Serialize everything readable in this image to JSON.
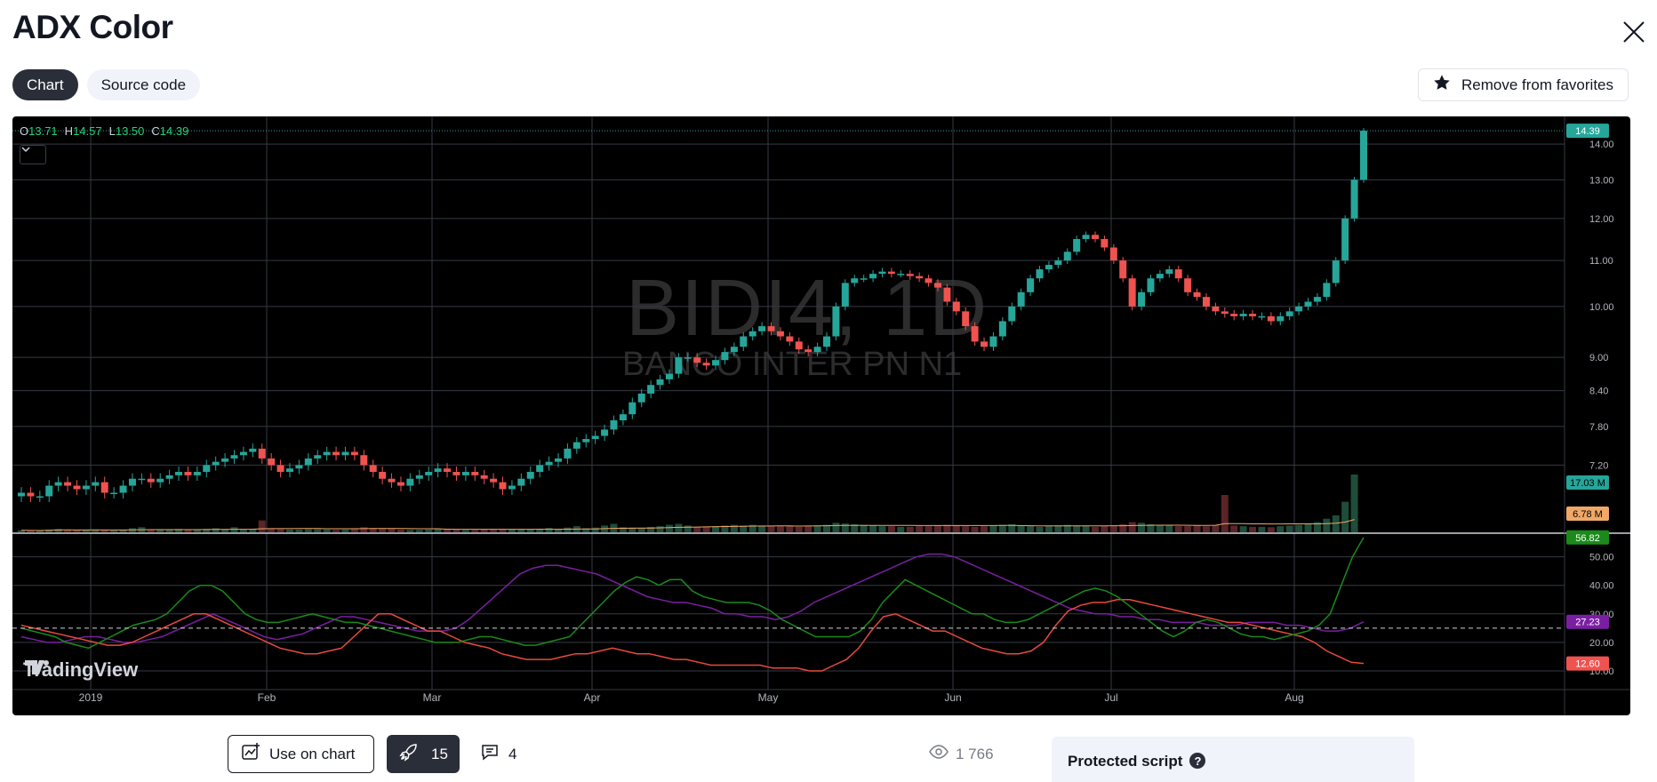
{
  "page": {
    "title": "ADX Color",
    "tabs": [
      {
        "label": "Chart",
        "active": true
      },
      {
        "label": "Source code",
        "active": false
      }
    ],
    "favorites_label": "Remove from favorites"
  },
  "chart": {
    "ohlc": {
      "o_label": "O",
      "o": "13.71",
      "h_label": "H",
      "h": "14.57",
      "l_label": "L",
      "l": "13.50",
      "c_label": "C",
      "c": "14.39"
    },
    "watermark_symbol": "BIDI4, 1D",
    "watermark_desc": "BANCO INTER PN N1",
    "logo_text": "TradingView",
    "price_labels": [
      "14.00",
      "13.00",
      "12.00",
      "11.00",
      "10.00",
      "9.00",
      "8.40",
      "7.80",
      "7.20"
    ],
    "adx_labels": [
      "50.00",
      "40.00",
      "30.00",
      "20.00",
      "10.00"
    ],
    "x_labels": [
      "2019",
      "Feb",
      "Mar",
      "Apr",
      "May",
      "Jun",
      "Jul",
      "Aug"
    ],
    "badges": {
      "last_price": "14.39",
      "volume": "17.03 M",
      "volume_ma": "6.78 M",
      "adx": "56.82",
      "di_plus": "27.23",
      "di_minus": "12.60"
    },
    "colors": {
      "up": "#26a69a",
      "down": "#ef5350",
      "adx": "#1b8a1b",
      "di_purple": "#7b1fa2",
      "di_red": "#e84a3f",
      "di_teal": "#26a69a"
    }
  },
  "chart_data": {
    "type": "candlestick",
    "symbol": "BIDI4",
    "interval": "1D",
    "price_axis": [
      7.0,
      14.5
    ],
    "adx_axis": [
      10,
      55
    ],
    "threshold_line": 25,
    "price_close": [
      6.8,
      6.75,
      6.75,
      6.9,
      6.95,
      6.9,
      6.85,
      6.9,
      6.95,
      6.8,
      6.8,
      6.9,
      7.0,
      7.0,
      6.95,
      7.0,
      7.05,
      7.1,
      7.05,
      7.1,
      7.2,
      7.25,
      7.3,
      7.35,
      7.4,
      7.45,
      7.3,
      7.2,
      7.1,
      7.15,
      7.2,
      7.3,
      7.35,
      7.4,
      7.35,
      7.4,
      7.35,
      7.2,
      7.1,
      7.0,
      6.95,
      6.9,
      7.0,
      7.05,
      7.1,
      7.15,
      7.1,
      7.05,
      7.1,
      7.05,
      7.0,
      6.95,
      6.85,
      6.9,
      7.0,
      7.1,
      7.2,
      7.25,
      7.3,
      7.45,
      7.55,
      7.6,
      7.65,
      7.75,
      7.9,
      8.0,
      8.2,
      8.35,
      8.5,
      8.6,
      8.7,
      9.0,
      9.0,
      8.9,
      8.85,
      8.95,
      9.1,
      9.2,
      9.4,
      9.5,
      9.6,
      9.5,
      9.4,
      9.3,
      9.15,
      9.1,
      9.2,
      9.4,
      10.0,
      10.5,
      10.6,
      10.6,
      10.7,
      10.75,
      10.7,
      10.7,
      10.65,
      10.6,
      10.5,
      10.4,
      10.1,
      9.9,
      9.6,
      9.3,
      9.2,
      9.4,
      9.7,
      10.0,
      10.3,
      10.6,
      10.8,
      10.9,
      11.0,
      11.2,
      11.5,
      11.6,
      11.5,
      11.3,
      11.0,
      10.6,
      10.0,
      10.3,
      10.6,
      10.7,
      10.8,
      10.6,
      10.3,
      10.2,
      10.0,
      9.9,
      9.85,
      9.8,
      9.85,
      9.8,
      9.8,
      9.7,
      9.8,
      9.9,
      10.0,
      10.1,
      10.2,
      10.5,
      11.0,
      12.0,
      13.0,
      14.39
    ],
    "volume_m": [
      0.6,
      0.5,
      0.5,
      0.8,
      1.0,
      0.8,
      0.6,
      0.7,
      0.8,
      0.6,
      0.5,
      0.7,
      1.2,
      1.5,
      0.8,
      0.9,
      0.8,
      1.0,
      0.7,
      0.8,
      1.0,
      1.2,
      0.9,
      1.5,
      0.9,
      1.0,
      3.5,
      1.0,
      0.9,
      0.8,
      0.8,
      0.9,
      0.9,
      0.8,
      0.7,
      0.8,
      0.9,
      1.5,
      1.2,
      1.0,
      1.0,
      0.8,
      0.7,
      0.7,
      0.8,
      1.0,
      0.9,
      0.8,
      0.7,
      0.7,
      0.8,
      0.9,
      1.0,
      0.9,
      0.8,
      0.9,
      1.0,
      1.3,
      1.0,
      1.4,
      1.8,
      1.2,
      1.4,
      2.0,
      2.5,
      1.5,
      1.4,
      1.2,
      1.6,
      1.8,
      2.2,
      2.5,
      2.0,
      1.6,
      1.6,
      1.8,
      2.0,
      2.2,
      2.0,
      2.2,
      2.0,
      1.8,
      1.8,
      2.0,
      1.6,
      1.8,
      2.0,
      2.2,
      2.8,
      2.6,
      2.4,
      2.2,
      2.0,
      1.8,
      1.8,
      1.6,
      1.6,
      1.8,
      1.8,
      2.0,
      2.2,
      2.0,
      1.8,
      1.6,
      1.8,
      2.0,
      2.2,
      2.4,
      2.0,
      1.8,
      1.6,
      1.8,
      2.0,
      2.2,
      2.0,
      1.8,
      1.6,
      1.8,
      2.0,
      2.4,
      3.0,
      2.8,
      2.4,
      2.2,
      2.0,
      1.8,
      1.8,
      2.0,
      1.8,
      2.2,
      11.0,
      2.0,
      1.8,
      1.6,
      1.6,
      1.5,
      1.8,
      2.0,
      2.2,
      2.4,
      3.0,
      4.0,
      5.0,
      9.0,
      17.03
    ],
    "adx": [
      25,
      24,
      23,
      22,
      20,
      19,
      18,
      20,
      22,
      24,
      26,
      27,
      28,
      30,
      34,
      38,
      40,
      40,
      38,
      34,
      30,
      28,
      27,
      27,
      28,
      29,
      30,
      29,
      28,
      27,
      27,
      26,
      25,
      24,
      23,
      22,
      21,
      20,
      20,
      20,
      21,
      22,
      22,
      21,
      20,
      19,
      19,
      20,
      21,
      22,
      26,
      30,
      34,
      38,
      41,
      43,
      42,
      40,
      42,
      42,
      38,
      36,
      35,
      34,
      34,
      34,
      33,
      31,
      28,
      26,
      24,
      22,
      22,
      22,
      22,
      24,
      28,
      34,
      38,
      42,
      40,
      38,
      36,
      34,
      32,
      30,
      30,
      28,
      27,
      27,
      28,
      30,
      32,
      34,
      36,
      38,
      39,
      38,
      36,
      33,
      30,
      27,
      24,
      22,
      24,
      27,
      28,
      27,
      25,
      23,
      22,
      22,
      21,
      22,
      23,
      24,
      26,
      30,
      40,
      50,
      56.82
    ],
    "di_plus": [
      22,
      21,
      20,
      20,
      21,
      22,
      22,
      21,
      20,
      20,
      21,
      22,
      24,
      26,
      28,
      30,
      28,
      26,
      24,
      22,
      21,
      22,
      23,
      25,
      27,
      29,
      29,
      28,
      27,
      26,
      25,
      24,
      24,
      24,
      25,
      28,
      32,
      36,
      40,
      44,
      46,
      47,
      47,
      46,
      45,
      44,
      42,
      40,
      38,
      36,
      35,
      34,
      34,
      33,
      32,
      30,
      30,
      29,
      29,
      28,
      29,
      31,
      34,
      36,
      38,
      40,
      42,
      44,
      46,
      48,
      50,
      51,
      51,
      50,
      48,
      46,
      44,
      42,
      40,
      38,
      36,
      34,
      32,
      31,
      30,
      30,
      29,
      29,
      28,
      28,
      27,
      27,
      27,
      26,
      26,
      26,
      27,
      27,
      27,
      26,
      26,
      25,
      24,
      24,
      25,
      27.23
    ],
    "di_minus": [
      26,
      25,
      24,
      23,
      22,
      21,
      20,
      19,
      19,
      20,
      22,
      24,
      26,
      28,
      30,
      30,
      28,
      26,
      24,
      22,
      20,
      18,
      17,
      16,
      16,
      17,
      18,
      22,
      26,
      30,
      30,
      28,
      26,
      24,
      24,
      22,
      20,
      19,
      18,
      16,
      15,
      14,
      14,
      14,
      15,
      16,
      16,
      17,
      18,
      17,
      16,
      16,
      15,
      14,
      14,
      13,
      12,
      12,
      12,
      12,
      12,
      11,
      11,
      11,
      10,
      10,
      12,
      14,
      18,
      24,
      29,
      30,
      28,
      26,
      24,
      24,
      22,
      20,
      18,
      17,
      16,
      16,
      17,
      20,
      26,
      31,
      33,
      34,
      34,
      35,
      35,
      34,
      33,
      32,
      31,
      30,
      29,
      28,
      27,
      27,
      26,
      25,
      24,
      23,
      22,
      20,
      17,
      15,
      13,
      12.6
    ]
  }
}
